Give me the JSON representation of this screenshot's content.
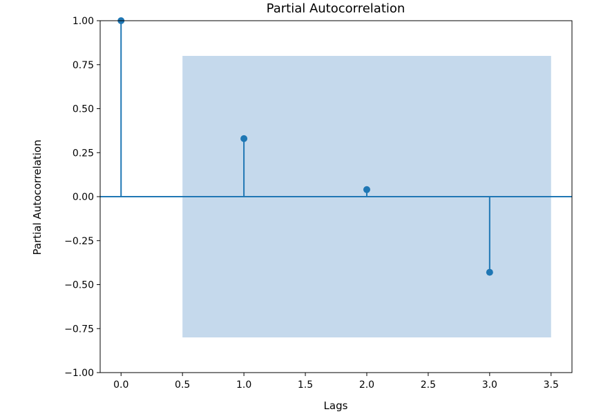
{
  "chart_data": {
    "type": "stem",
    "title": "Partial Autocorrelation",
    "xlabel": "Lags",
    "ylabel": "Partial Autocorrelation",
    "xlim": [
      -0.17,
      3.67
    ],
    "ylim": [
      -1.0,
      1.0
    ],
    "xticks": [
      "0.0",
      "0.5",
      "1.0",
      "1.5",
      "2.0",
      "2.5",
      "3.0",
      "3.5"
    ],
    "yticks": [
      "−1.00",
      "−0.75",
      "−0.50",
      "−0.25",
      "0.00",
      "0.25",
      "0.50",
      "0.75",
      "1.00"
    ],
    "lags": [
      0,
      1,
      2,
      3
    ],
    "values": [
      1.0,
      0.33,
      0.04,
      -0.43
    ],
    "confidence_band": {
      "x_from": 0.5,
      "x_to": 3.5,
      "lower": -0.8,
      "upper": 0.8
    },
    "colors": {
      "stem": "#1f77b4",
      "band": "#c5d9ec"
    },
    "grid": false
  }
}
